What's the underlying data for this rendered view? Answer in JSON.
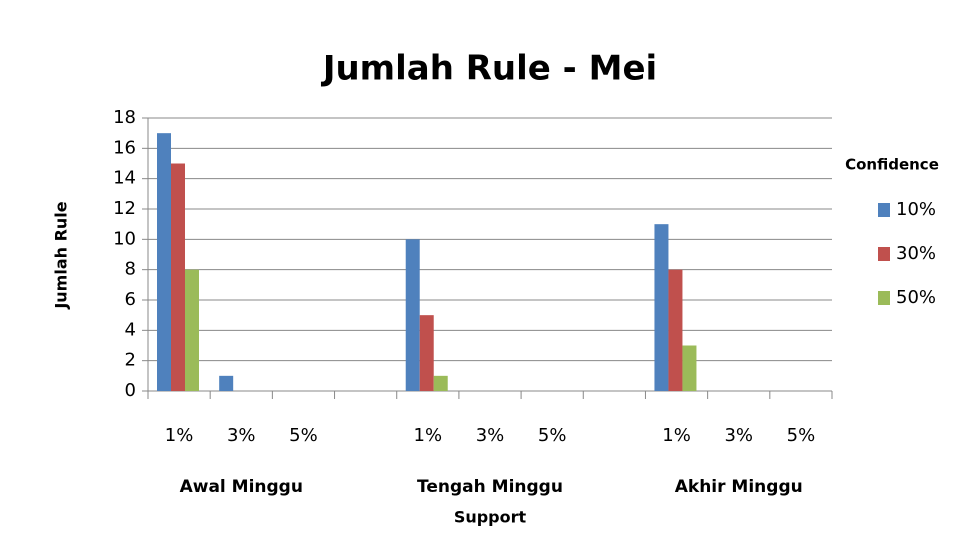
{
  "chart_data": {
    "type": "bar",
    "title": "Jumlah Rule - Mei",
    "y_label": "Jumlah Rule",
    "x_label": "Support",
    "legend_title": "Confidence",
    "legend_position": "right",
    "categories": [
      "1%",
      "3%",
      "5%",
      null,
      "1%",
      "3%",
      "5%",
      null,
      "1%",
      "3%",
      "5%"
    ],
    "groups": [
      "Awal Minggu",
      "Tengah Minggu",
      "Akhir Minggu"
    ],
    "series": [
      {
        "name": "10%",
        "color": "#4f81bd",
        "values": [
          17,
          1,
          0,
          null,
          10,
          0,
          0,
          null,
          11,
          0,
          0
        ]
      },
      {
        "name": "30%",
        "color": "#c0504d",
        "values": [
          15,
          0,
          0,
          null,
          5,
          0,
          0,
          null,
          8,
          0,
          0
        ]
      },
      {
        "name": "50%",
        "color": "#9bbb59",
        "values": [
          8,
          0,
          0,
          null,
          1,
          0,
          0,
          null,
          3,
          0,
          0
        ]
      }
    ],
    "ylim": [
      0,
      18
    ],
    "yticks": [
      0,
      2,
      4,
      6,
      8,
      10,
      12,
      14,
      16,
      18
    ],
    "grid": true
  }
}
